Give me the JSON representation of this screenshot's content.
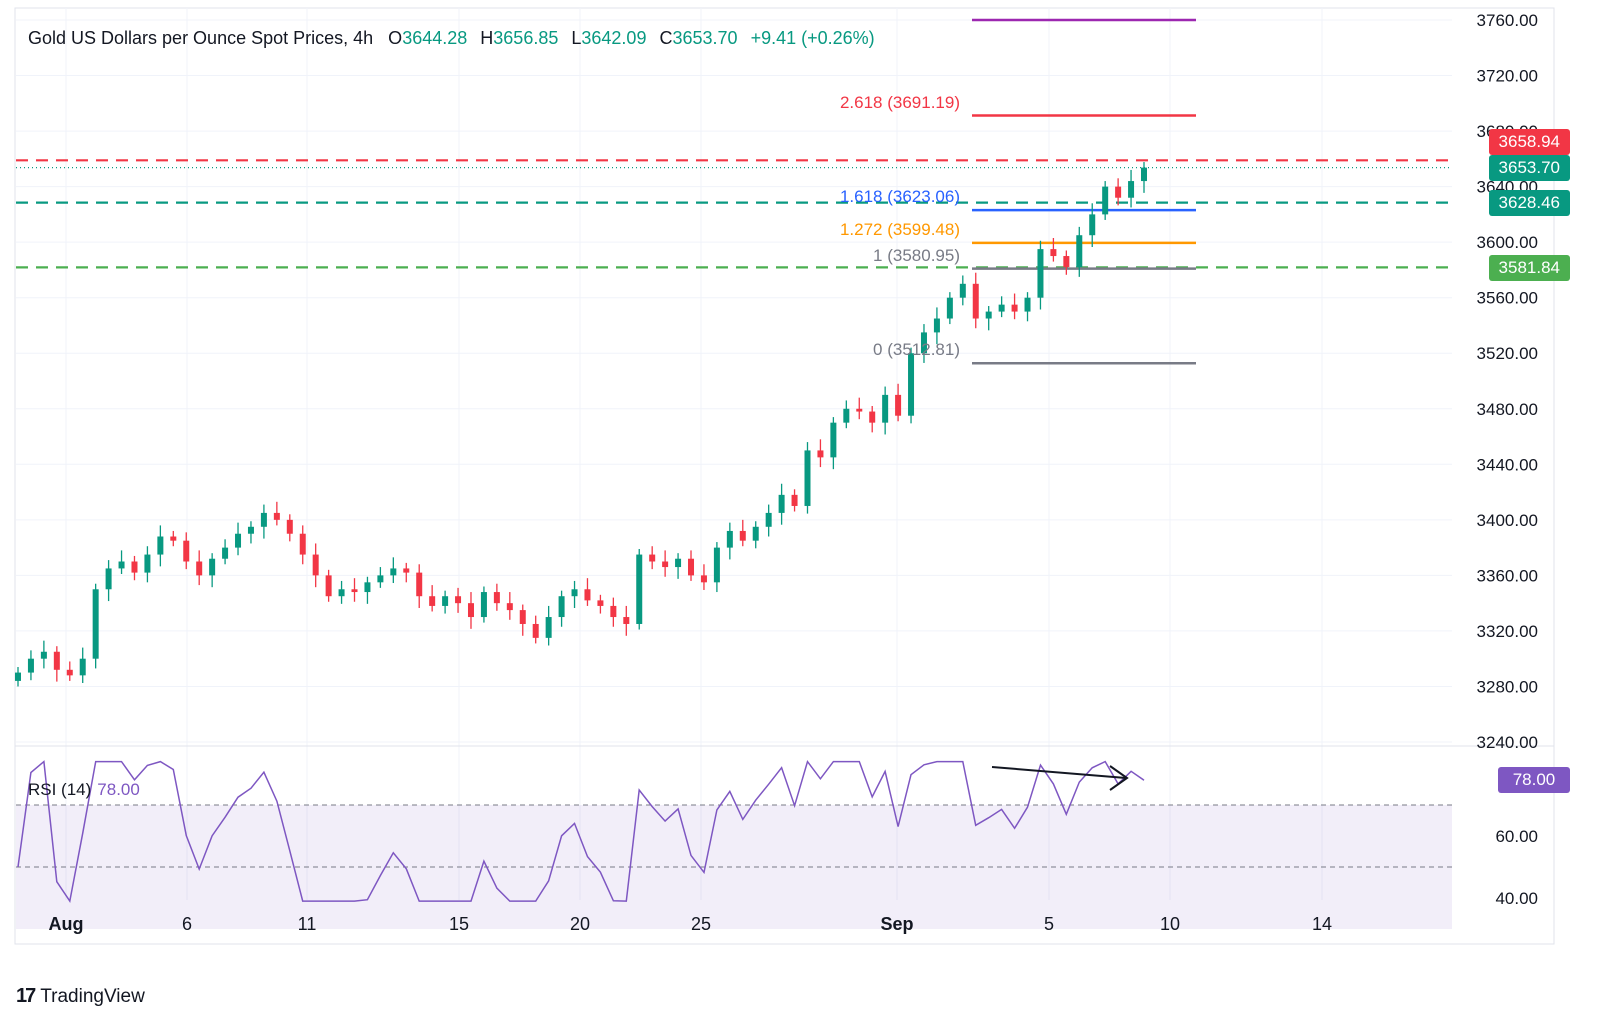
{
  "header": {
    "title": "Gold US Dollars per Ounce Spot Prices, 4h",
    "open_label": "O",
    "open": "3644.28",
    "high_label": "H",
    "high": "3656.85",
    "low_label": "L",
    "low": "3642.09",
    "close_label": "C",
    "close": "3653.70",
    "change": "+9.41 (+0.26%)"
  },
  "rsi": {
    "label": "RSI (14)",
    "value": "78.00"
  },
  "brand": {
    "name": "TradingView"
  },
  "price_tags": [
    {
      "text": "3658.94",
      "price": 3658.94,
      "color": "#f23645"
    },
    {
      "text": "3653.70",
      "price": 3653.7,
      "color": "#089981"
    },
    {
      "text": "3628.46",
      "price": 3628.46,
      "color": "#089981"
    },
    {
      "text": "3581.84",
      "price": 3581.84,
      "color": "#4caf50"
    }
  ],
  "rsi_tag": {
    "text": "78.00",
    "color": "#7e57c2"
  },
  "fib_levels": [
    {
      "label": "2.618 (3691.19)",
      "price": 3691.19,
      "color": "#f23645"
    },
    {
      "label": "1.618 (3623.06)",
      "price": 3623.06,
      "color": "#2962ff"
    },
    {
      "label": "1.272 (3599.48)",
      "price": 3599.48,
      "color": "#ff9800"
    },
    {
      "label": "1 (3580.95)",
      "price": 3580.95,
      "color": "#787b86"
    },
    {
      "label": "0 (3512.81)",
      "price": 3512.81,
      "color": "#787b86"
    }
  ],
  "top_level": {
    "price": 3760.0,
    "color": "#9c27b0"
  },
  "dashed_levels": [
    {
      "price": 3658.94,
      "color": "#f23645"
    },
    {
      "price": 3628.46,
      "color": "#089981"
    },
    {
      "price": 3581.84,
      "color": "#4caf50"
    }
  ],
  "chart_data": {
    "type": "candlestick",
    "title": "Gold US Dollars per Ounce Spot Prices, 4h",
    "ylim": [
      3230,
      3770
    ],
    "y_ticks": [
      "3240.00",
      "3280.00",
      "3320.00",
      "3360.00",
      "3400.00",
      "3440.00",
      "3480.00",
      "3520.00",
      "3560.00",
      "3600.00",
      "3640.00",
      "3680.00",
      "3720.00",
      "3760.00"
    ],
    "x_ticks": [
      "Aug",
      "6",
      "11",
      "15",
      "20",
      "25",
      "Sep",
      "5",
      "10",
      "14"
    ],
    "up_color": "#089981",
    "down_color": "#f23645",
    "close_path": [
      [
        "Aug",
        3290
      ],
      [
        "Aug",
        3300
      ],
      [
        "Aug",
        3305
      ],
      [
        "Aug",
        3292
      ],
      [
        "Aug",
        3288
      ],
      [
        "Aug",
        3300
      ],
      [
        "Aug",
        3350
      ],
      [
        "Aug",
        3365
      ],
      [
        "Aug",
        3370
      ],
      [
        "Aug",
        3362
      ],
      [
        "6",
        3375
      ],
      [
        "6",
        3388
      ],
      [
        "6",
        3385
      ],
      [
        "6",
        3370
      ],
      [
        "6",
        3360
      ],
      [
        "6",
        3372
      ],
      [
        "6",
        3380
      ],
      [
        "6",
        3390
      ],
      [
        "6",
        3395
      ],
      [
        "6",
        3405
      ],
      [
        "11",
        3400
      ],
      [
        "11",
        3390
      ],
      [
        "11",
        3375
      ],
      [
        "11",
        3360
      ],
      [
        "11",
        3345
      ],
      [
        "11",
        3350
      ],
      [
        "11",
        3348
      ],
      [
        "11",
        3355
      ],
      [
        "11",
        3360
      ],
      [
        "15",
        3365
      ],
      [
        "15",
        3362
      ],
      [
        "15",
        3345
      ],
      [
        "15",
        3338
      ],
      [
        "15",
        3345
      ],
      [
        "15",
        3340
      ],
      [
        "15",
        3330
      ],
      [
        "15",
        3348
      ],
      [
        "15",
        3340
      ],
      [
        "15",
        3335
      ],
      [
        "20",
        3325
      ],
      [
        "20",
        3315
      ],
      [
        "20",
        3330
      ],
      [
        "20",
        3345
      ],
      [
        "20",
        3350
      ],
      [
        "20",
        3342
      ],
      [
        "20",
        3338
      ],
      [
        "20",
        3330
      ],
      [
        "25",
        3325
      ],
      [
        "25",
        3375
      ],
      [
        "25",
        3370
      ],
      [
        "25",
        3366
      ],
      [
        "25",
        3372
      ],
      [
        "25",
        3360
      ],
      [
        "25",
        3355
      ],
      [
        "25",
        3380
      ],
      [
        "25",
        3392
      ],
      [
        "25",
        3385
      ],
      [
        "Sep",
        3395
      ],
      [
        "Sep",
        3405
      ],
      [
        "Sep",
        3418
      ],
      [
        "Sep",
        3410
      ],
      [
        "Sep",
        3450
      ],
      [
        "Sep",
        3445
      ],
      [
        "Sep",
        3470
      ],
      [
        "Sep",
        3480
      ],
      [
        "Sep",
        3478
      ],
      [
        "Sep",
        3470
      ],
      [
        "Sep",
        3490
      ],
      [
        "Sep",
        3475
      ],
      [
        "Sep",
        3520
      ],
      [
        "Sep",
        3535
      ],
      [
        "Sep",
        3545
      ],
      [
        "Sep",
        3560
      ],
      [
        "5",
        3570
      ],
      [
        "5",
        3545
      ],
      [
        "5",
        3550
      ],
      [
        "5",
        3555
      ],
      [
        "5",
        3550
      ],
      [
        "5",
        3560
      ],
      [
        "5",
        3595
      ],
      [
        "5",
        3590
      ],
      [
        "5",
        3582
      ],
      [
        "5",
        3605
      ],
      [
        "10",
        3620
      ],
      [
        "10",
        3640
      ],
      [
        "10",
        3632
      ],
      [
        "10",
        3644
      ],
      [
        "10",
        3653.7
      ]
    ]
  }
}
